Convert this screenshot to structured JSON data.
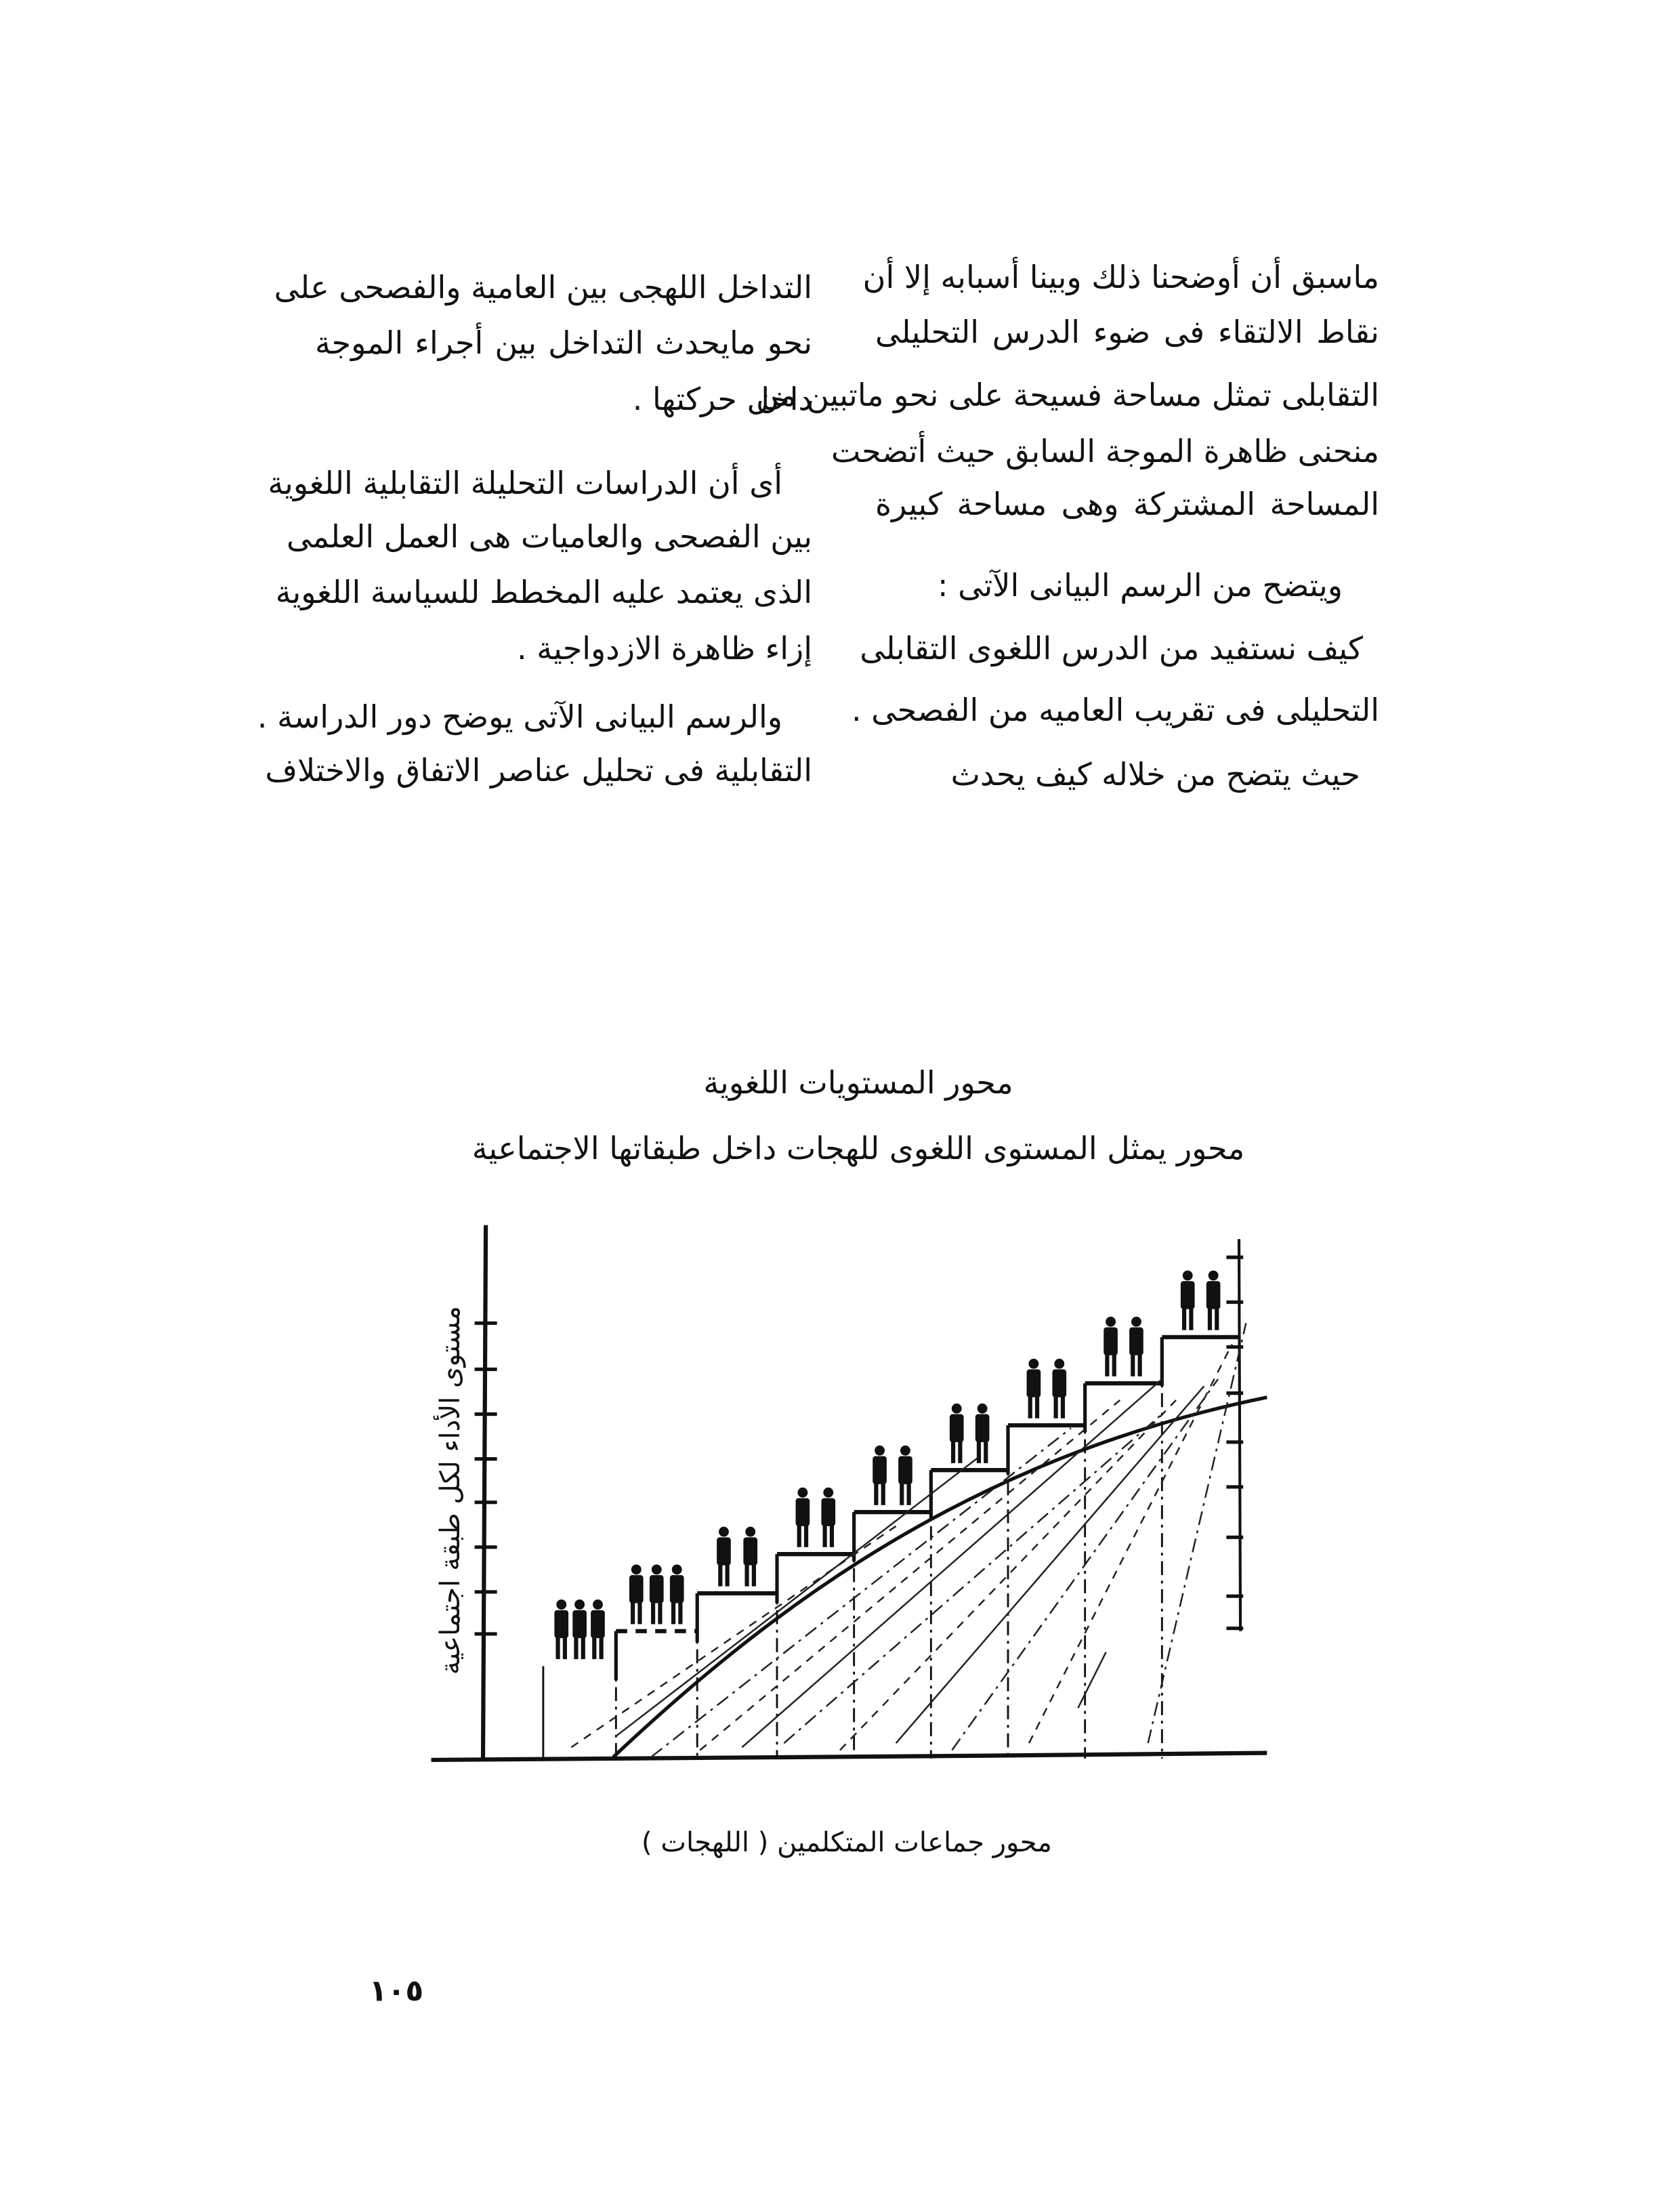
{
  "right_column": {
    "lines": [
      "ماسبق أن أوضحنا ذلك وبينا أسبابه إلا أن",
      "نقاط الالتقاء فى ضوء الدرس التحليلى",
      "التقابلى تمثل مساحة فسيحة على نحو ماتبين من",
      "منحنى ظاهرة الموجة السابق حيث أتضحت",
      "المساحة المشتركة وهى مساحة كبيرة",
      "ويتضح من الرسم البيانى الآتى :",
      "كيف نستفيد من الدرس اللغوى التقابلى",
      "التحليلى فى تقريب العاميه من الفصحى .",
      "حيث يتضح من خلاله كيف يحدث"
    ]
  },
  "left_column": {
    "lines": [
      "التداخل اللهجى بين العامية والفصحى على",
      "نحو مايحدث التداخل بين أجراء الموجة",
      "داخل حركتها .",
      "أى أن الدراسات التحليلة التقابلية اللغوية",
      "بين الفصحى والعاميات هى العمل العلمى",
      "الذى يعتمد عليه المخطط للسياسة اللغوية",
      "إزاء ظاهرة الازدواجية .",
      "والرسم البيانى الآتى يوضح دور الدراسة .",
      "التقابلية فى تحليل عناصر الاتفاق والاختلاف"
    ]
  },
  "diagram": {
    "title": "محور المستويات اللغوية",
    "subtitle": "محور يمثل المستوى اللغوى للهجات داخل طبقاتها الاجتماعية",
    "y_axis_label": "مستوى الأداء لكل طبقة اجتماعية",
    "x_axis_label": "محور جماعات المتكلمين ( اللهجات )",
    "icons": [
      "person-figure-icon"
    ]
  },
  "page_number": "١٠٥"
}
